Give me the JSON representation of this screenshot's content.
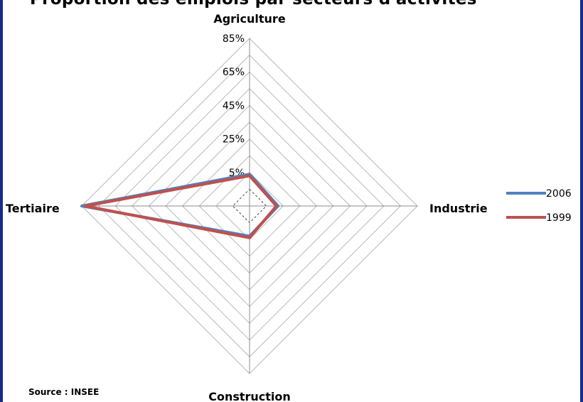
{
  "title": "Proportion des emplois par secteurs d'activités",
  "source": "Source : INSEE",
  "chart_data": {
    "type": "radar",
    "title": "Proportion des emplois par secteurs d'activités",
    "axes": [
      "Agriculture",
      "Industrie",
      "Construction",
      "Tertiaire"
    ],
    "tick_labels": [
      "5%",
      "25%",
      "45%",
      "65%",
      "85%"
    ],
    "rlim": [
      -15,
      85
    ],
    "grid": true,
    "legend_position": "right",
    "series": [
      {
        "name": "2006",
        "color": "#4f81bd",
        "values": [
          4,
          2,
          3,
          85
        ]
      },
      {
        "name": "1999",
        "color": "#c0504d",
        "values": [
          3,
          1,
          4,
          83
        ]
      }
    ]
  }
}
